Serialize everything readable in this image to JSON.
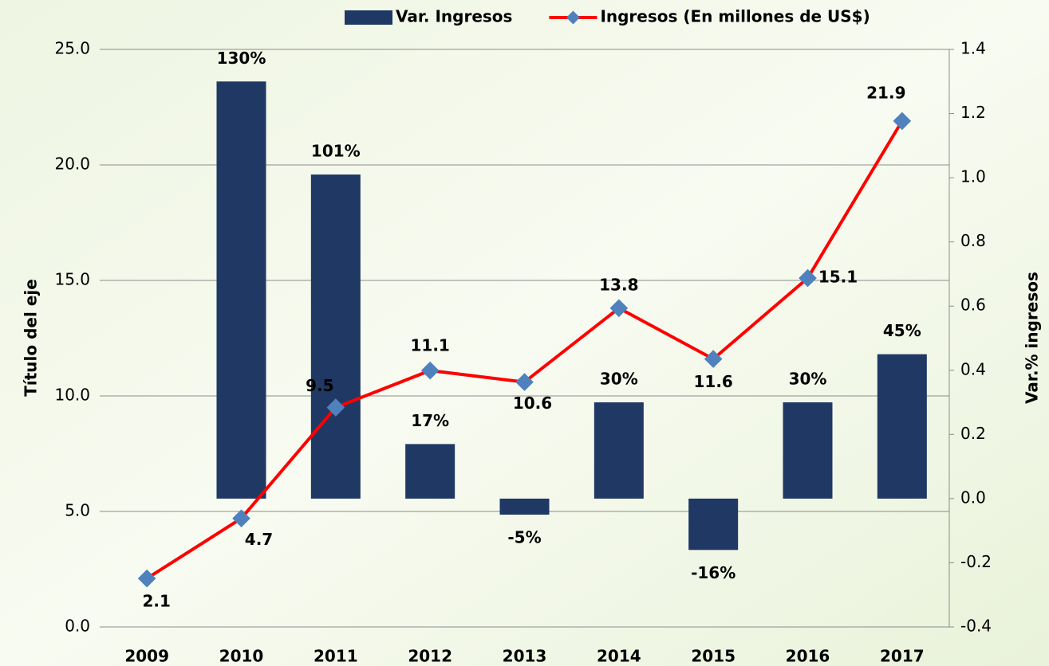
{
  "chart_data": {
    "type": "bar-line",
    "categories": [
      "2009",
      "2010",
      "2011",
      "2012",
      "2013",
      "2014",
      "2015",
      "2016",
      "2017"
    ],
    "series": [
      {
        "name": "Var. Ingresos",
        "type": "bar",
        "axis": "y2",
        "color": "#1f3864",
        "values": [
          null,
          1.3,
          1.01,
          0.17,
          -0.05,
          0.3,
          -0.16,
          0.3,
          0.45
        ],
        "value_labels": [
          null,
          "130%",
          "101%",
          "17%",
          "-5%",
          "30%",
          "-16%",
          "30%",
          "45%"
        ]
      },
      {
        "name": "Ingresos (En millones de US$)",
        "type": "line",
        "axis": "y",
        "color": "#ff0000",
        "marker_color": "#4f81bd",
        "values": [
          2.1,
          4.7,
          9.5,
          11.1,
          10.6,
          13.8,
          11.6,
          15.1,
          21.9
        ]
      }
    ],
    "y_label": "Título del eje",
    "y2_label": "Var.% ingresos",
    "ylim": [
      0,
      25
    ],
    "yticks": [
      {
        "value": 0,
        "label": "0.0"
      },
      {
        "value": 5,
        "label": "5.0"
      },
      {
        "value": 10,
        "label": "10.0"
      },
      {
        "value": 15,
        "label": "15.0"
      },
      {
        "value": 20,
        "label": "20.0"
      },
      {
        "value": 25,
        "label": "25.0"
      }
    ],
    "y2lim": [
      -0.4,
      1.4
    ],
    "y2ticks": [
      -0.4,
      -0.2,
      {
        "value": 0,
        "label": "0.0"
      },
      0.2,
      0.4,
      0.6,
      0.8,
      {
        "value": 1,
        "label": "1.0"
      },
      1.2,
      1.4
    ],
    "grid": true,
    "legend": "top"
  }
}
